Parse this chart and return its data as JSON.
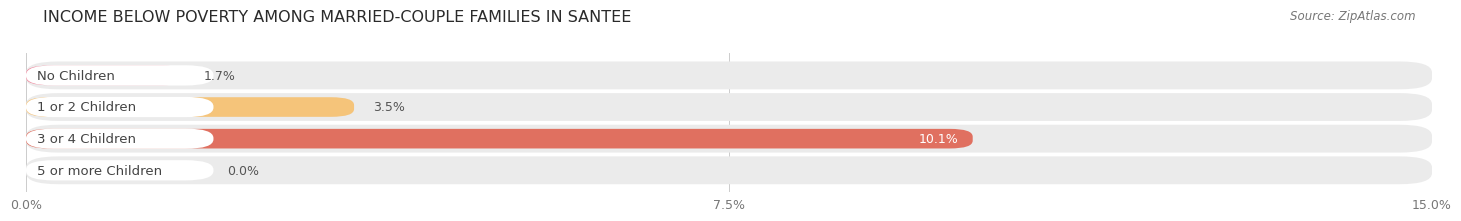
{
  "title": "INCOME BELOW POVERTY AMONG MARRIED-COUPLE FAMILIES IN SANTEE",
  "source": "Source: ZipAtlas.com",
  "categories": [
    "No Children",
    "1 or 2 Children",
    "3 or 4 Children",
    "5 or more Children"
  ],
  "values": [
    1.7,
    3.5,
    10.1,
    0.0
  ],
  "bar_colors": [
    "#f1849b",
    "#f5c47a",
    "#e07060",
    "#9ab8d8"
  ],
  "value_text_colors": [
    "#555555",
    "#555555",
    "#ffffff",
    "#555555"
  ],
  "xlim": [
    0,
    15.0
  ],
  "xticks": [
    0.0,
    7.5,
    15.0
  ],
  "xticklabels": [
    "0.0%",
    "7.5%",
    "15.0%"
  ],
  "bar_height": 0.62,
  "pill_bg_color": "#ebebeb",
  "label_bg_color": "#ffffff",
  "bg_color": "#ffffff",
  "label_fontsize": 9.5,
  "title_fontsize": 11.5,
  "value_fontsize": 9.0,
  "source_fontsize": 8.5
}
